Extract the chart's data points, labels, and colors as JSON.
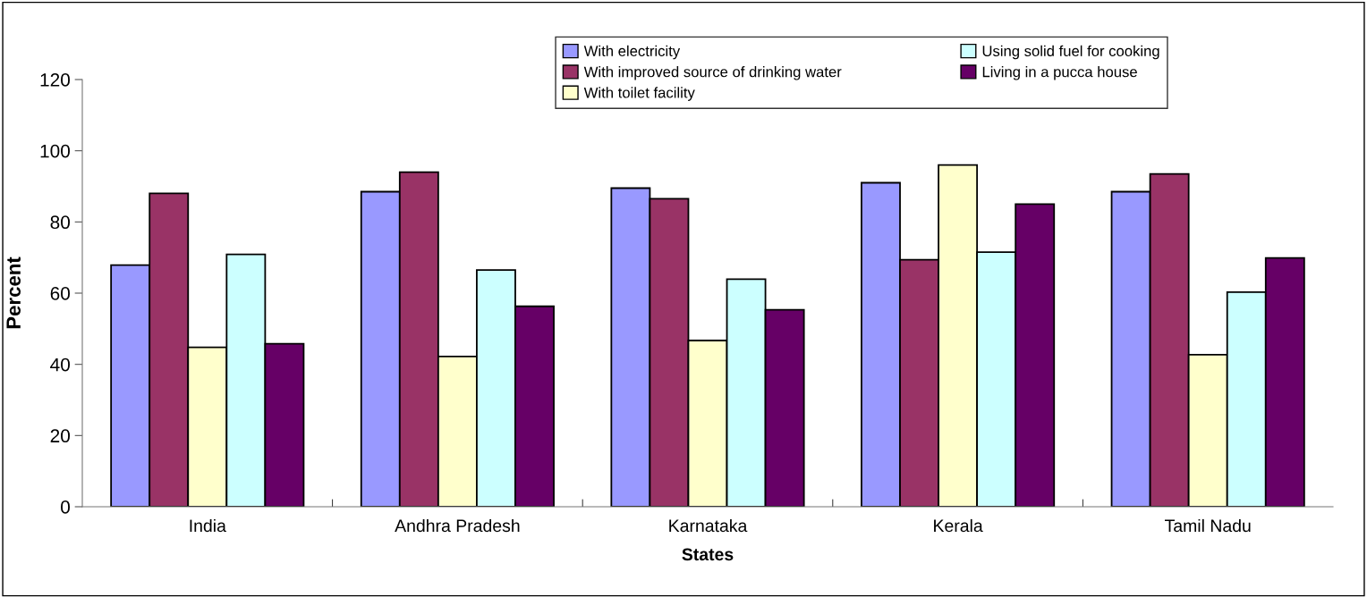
{
  "chart_data": {
    "type": "bar",
    "xlabel": "States",
    "ylabel": "Percent",
    "categories": [
      "India",
      "Andhra Pradesh",
      "Karnataka",
      "Kerala",
      "Tamil Nadu"
    ],
    "series": [
      {
        "name": "With electricity",
        "color": "#9999ff",
        "values": [
          67.9,
          88.5,
          89.5,
          91.0,
          88.5
        ]
      },
      {
        "name": "With improved source of drinking water",
        "color": "#993366",
        "values": [
          88.0,
          94.0,
          86.5,
          69.4,
          93.5
        ]
      },
      {
        "name": "With toilet facility",
        "color": "#ffffcc",
        "values": [
          44.8,
          42.2,
          46.7,
          96.0,
          42.7
        ]
      },
      {
        "name": "Using solid fuel for cooking",
        "color": "#ccffff",
        "values": [
          70.9,
          66.5,
          63.9,
          71.5,
          60.3
        ]
      },
      {
        "name": "Living in a pucca house",
        "color": "#660066",
        "values": [
          45.8,
          56.3,
          55.3,
          85.0,
          69.9
        ]
      }
    ],
    "ylim": [
      0,
      120
    ],
    "yticks": [
      0,
      20,
      40,
      60,
      80,
      100,
      120
    ],
    "grid": false,
    "legend": "top"
  }
}
